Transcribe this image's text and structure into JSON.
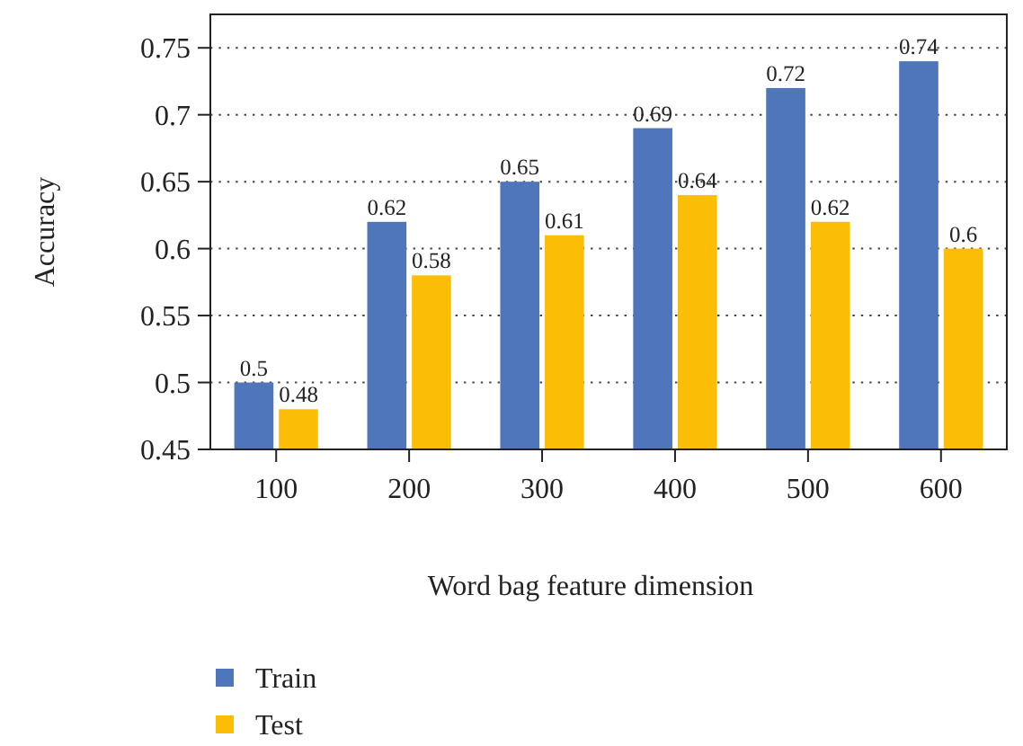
{
  "chart_data": {
    "type": "bar",
    "xlabel": "Word bag feature dimension",
    "ylabel": "Accuracy",
    "categories": [
      "100",
      "200",
      "300",
      "400",
      "500",
      "600"
    ],
    "series": [
      {
        "name": "Train",
        "color": "#4f76bb",
        "values": [
          0.5,
          0.62,
          0.65,
          0.69,
          0.72,
          0.74
        ]
      },
      {
        "name": "Test",
        "color": "#fbbd06",
        "values": [
          0.48,
          0.58,
          0.61,
          0.64,
          0.62,
          0.6
        ]
      }
    ],
    "ylim": [
      0.45,
      0.775
    ],
    "yticks": [
      0.45,
      0.5,
      0.55,
      0.6,
      0.65,
      0.7,
      0.75
    ],
    "grid": "y",
    "data_labels": true,
    "legend": "bottom left"
  }
}
